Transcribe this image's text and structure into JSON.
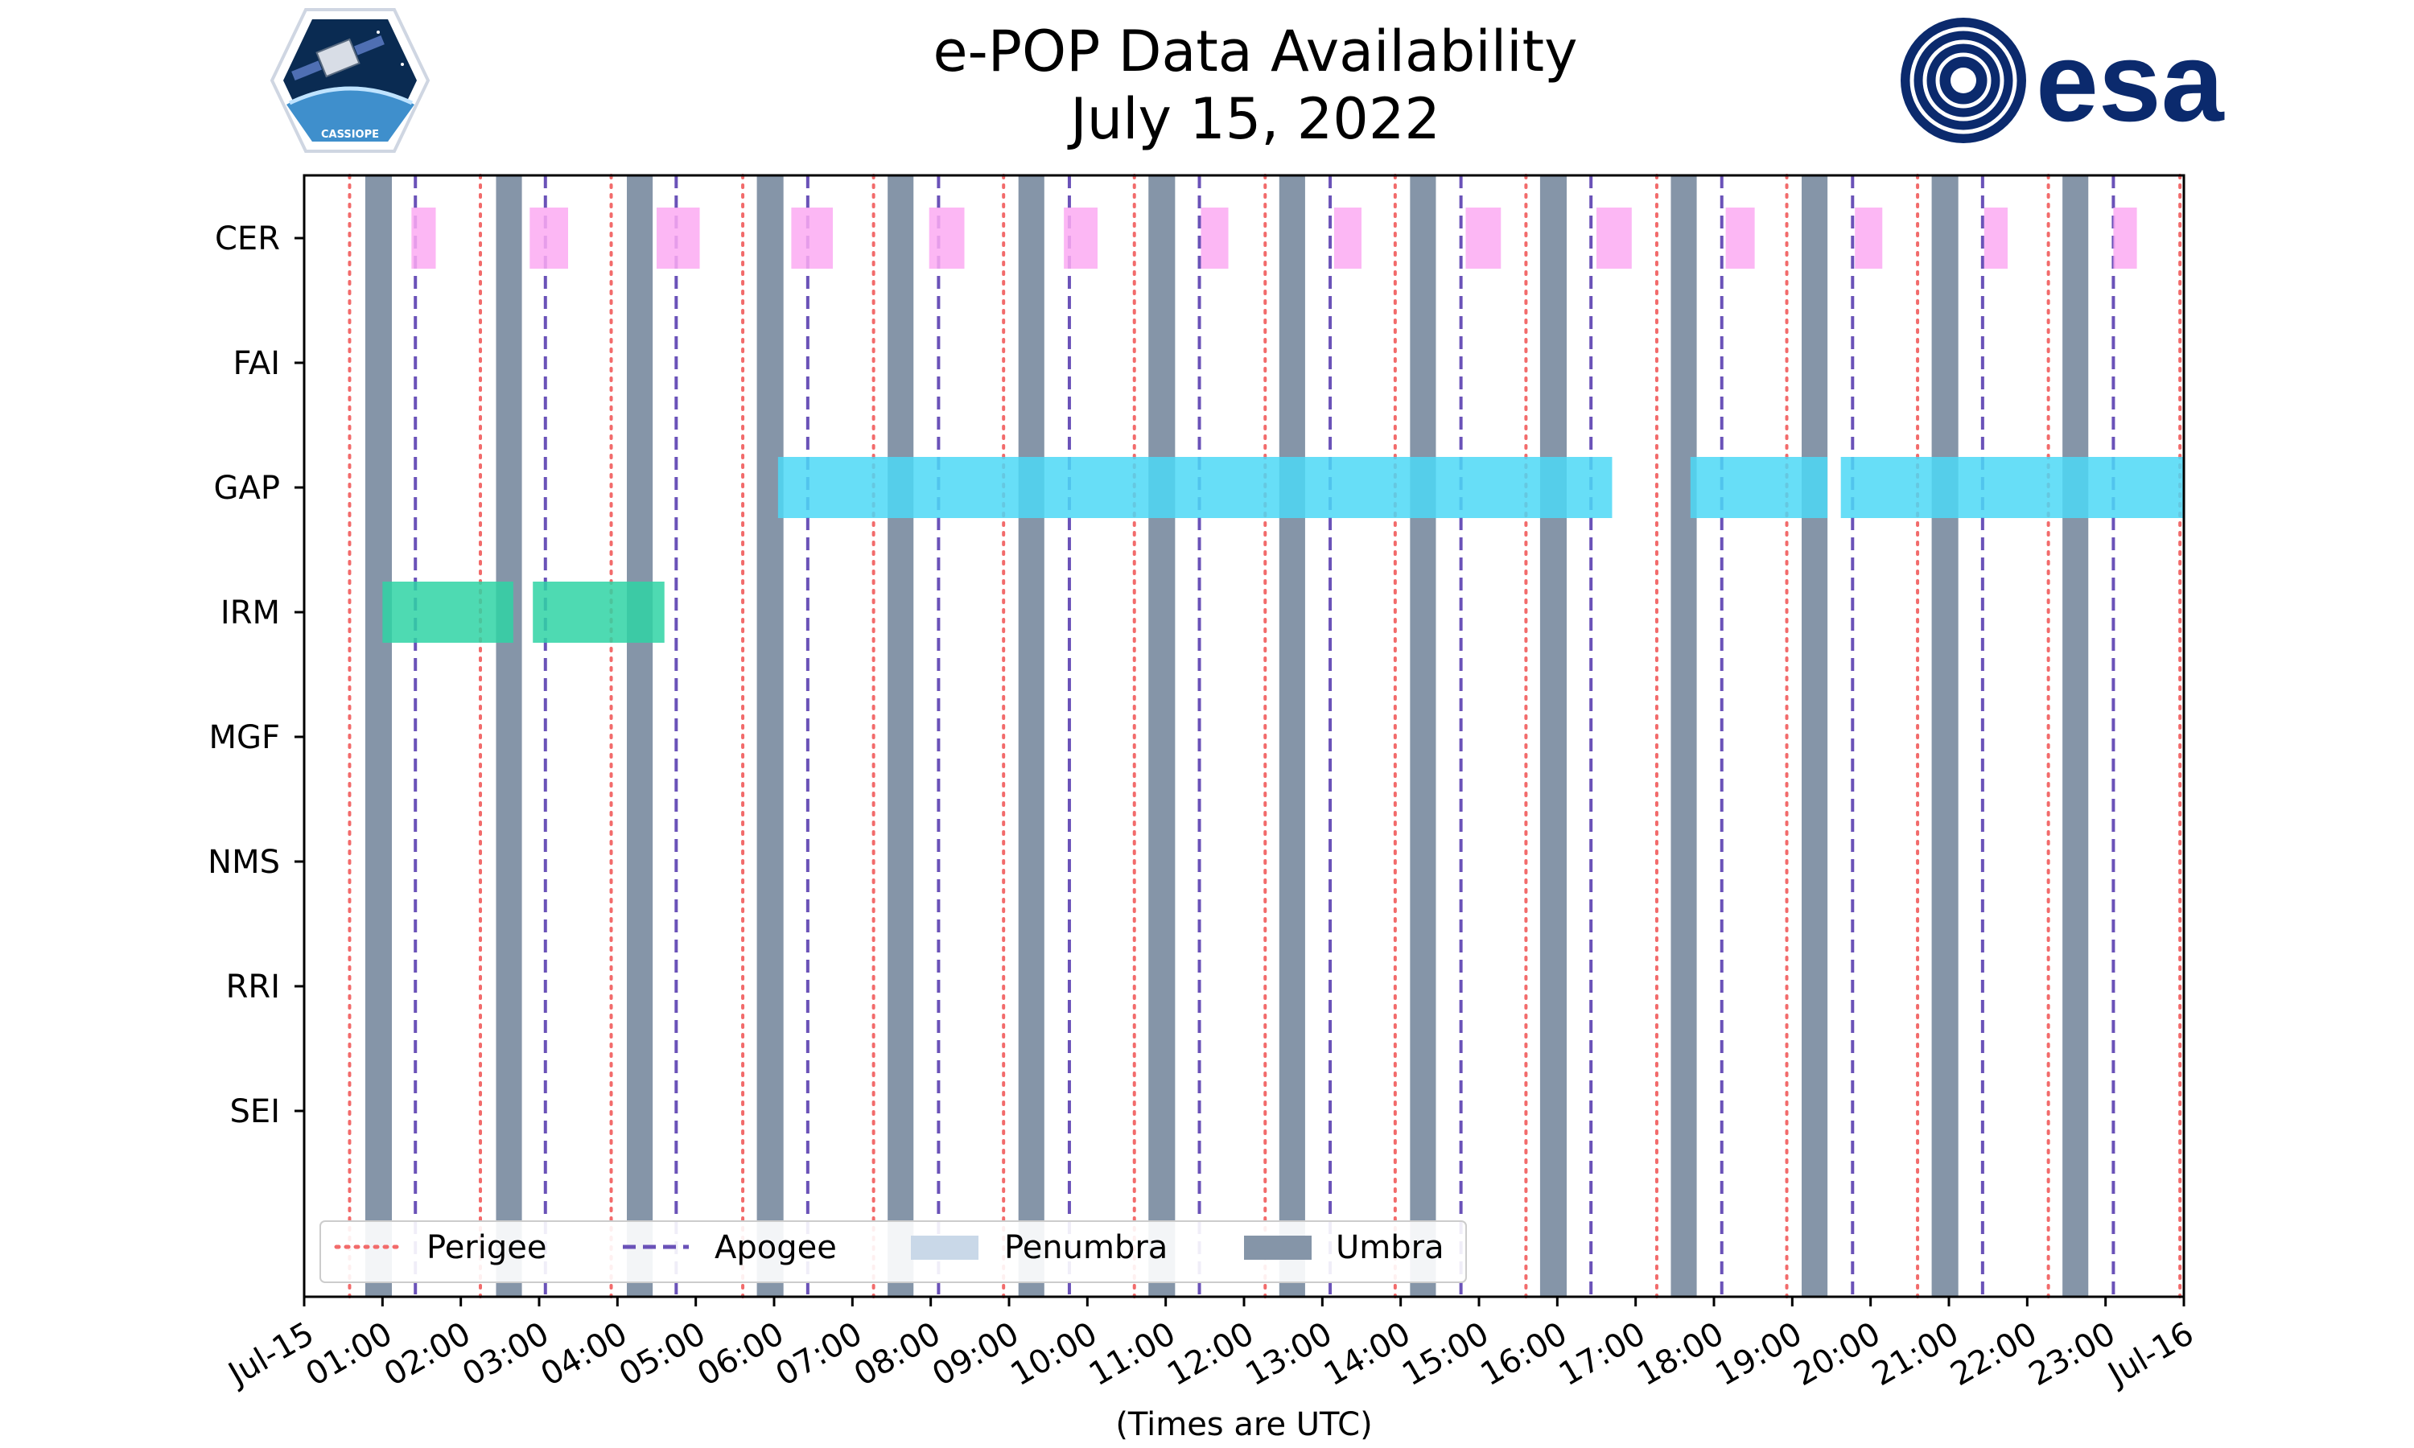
{
  "chart_data": {
    "type": "timeline",
    "title": "e-POP Data Availability",
    "subtitle": "July 15, 2022",
    "xlabel": "(Times are UTC)",
    "x_unit": "hours",
    "xlim": [
      0,
      24
    ],
    "x_ticks": [
      {
        "hour": 0,
        "label": "Jul-15"
      },
      {
        "hour": 1,
        "label": "01:00"
      },
      {
        "hour": 2,
        "label": "02:00"
      },
      {
        "hour": 3,
        "label": "03:00"
      },
      {
        "hour": 4,
        "label": "04:00"
      },
      {
        "hour": 5,
        "label": "05:00"
      },
      {
        "hour": 6,
        "label": "06:00"
      },
      {
        "hour": 7,
        "label": "07:00"
      },
      {
        "hour": 8,
        "label": "08:00"
      },
      {
        "hour": 9,
        "label": "09:00"
      },
      {
        "hour": 10,
        "label": "10:00"
      },
      {
        "hour": 11,
        "label": "11:00"
      },
      {
        "hour": 12,
        "label": "12:00"
      },
      {
        "hour": 13,
        "label": "13:00"
      },
      {
        "hour": 14,
        "label": "14:00"
      },
      {
        "hour": 15,
        "label": "15:00"
      },
      {
        "hour": 16,
        "label": "16:00"
      },
      {
        "hour": 17,
        "label": "17:00"
      },
      {
        "hour": 18,
        "label": "18:00"
      },
      {
        "hour": 19,
        "label": "19:00"
      },
      {
        "hour": 20,
        "label": "20:00"
      },
      {
        "hour": 21,
        "label": "21:00"
      },
      {
        "hour": 22,
        "label": "22:00"
      },
      {
        "hour": 23,
        "label": "23:00"
      },
      {
        "hour": 24,
        "label": "Jul-16"
      }
    ],
    "instruments": [
      "CER",
      "FAI",
      "GAP",
      "IRM",
      "MGF",
      "NMS",
      "RRI",
      "SEI"
    ],
    "colors": {
      "perigee": "#f26b6b",
      "apogee": "#6a52b8",
      "penumbra": "#c9d8e8",
      "umbra": "#8595a8",
      "CER": "#fbaaf2",
      "GAP": "#4cd8f6",
      "IRM": "#2fd3a4"
    },
    "perigee_hours": [
      0.58,
      2.25,
      3.92,
      5.6,
      7.27,
      8.93,
      10.6,
      12.27,
      13.93,
      15.6,
      17.27,
      18.93,
      20.6,
      22.27,
      23.95
    ],
    "apogee_hours": [
      1.42,
      3.08,
      4.75,
      6.43,
      8.1,
      9.77,
      11.43,
      13.1,
      14.77,
      16.43,
      18.1,
      19.77,
      21.43,
      23.1
    ],
    "umbra": [
      [
        0.78,
        1.12
      ],
      [
        2.45,
        2.78
      ],
      [
        4.12,
        4.45
      ],
      [
        5.78,
        6.12
      ],
      [
        7.45,
        7.78
      ],
      [
        9.12,
        9.45
      ],
      [
        10.78,
        11.12
      ],
      [
        12.45,
        12.78
      ],
      [
        14.12,
        14.45
      ],
      [
        15.78,
        16.12
      ],
      [
        17.45,
        17.78
      ],
      [
        19.12,
        19.45
      ],
      [
        20.78,
        21.12
      ],
      [
        22.45,
        22.78
      ]
    ],
    "availability": {
      "CER": [
        [
          1.37,
          1.68
        ],
        [
          2.88,
          3.37
        ],
        [
          4.5,
          5.05
        ],
        [
          6.22,
          6.75
        ],
        [
          7.98,
          8.43
        ],
        [
          9.7,
          10.13
        ],
        [
          11.45,
          11.8
        ],
        [
          13.15,
          13.5
        ],
        [
          14.83,
          15.28
        ],
        [
          16.5,
          16.95
        ],
        [
          18.15,
          18.52
        ],
        [
          19.8,
          20.15
        ],
        [
          21.45,
          21.75
        ],
        [
          23.1,
          23.4
        ]
      ],
      "FAI": [],
      "GAP": [
        [
          6.05,
          16.7
        ],
        [
          17.7,
          19.45
        ],
        [
          19.62,
          24.0
        ]
      ],
      "IRM": [
        [
          1.0,
          2.67
        ],
        [
          2.92,
          4.6
        ]
      ],
      "MGF": [],
      "NMS": [],
      "RRI": [],
      "SEI": []
    },
    "legend": {
      "position": "lower-left",
      "entries": [
        "Perigee",
        "Apogee",
        "Penumbra",
        "Umbra"
      ]
    }
  },
  "logos": {
    "left": {
      "name": "CASSIOPE mission badge",
      "text": "CASSIOPE"
    },
    "right": {
      "name": "ESA logo",
      "text": "esa"
    }
  }
}
